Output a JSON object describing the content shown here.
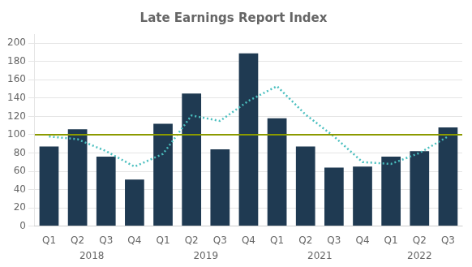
{
  "chart_data": {
    "type": "bar",
    "title": "Late Earnings Report Index",
    "categories": [
      "Q1",
      "Q2",
      "Q3",
      "Q4",
      "Q1",
      "Q2",
      "Q3",
      "Q4",
      "Q1",
      "Q2",
      "Q3",
      "Q4",
      "Q1",
      "Q2",
      "Q3"
    ],
    "groups": [
      {
        "label": "2018",
        "categories": [
          "Q1",
          "Q2",
          "Q3",
          "Q4"
        ]
      },
      {
        "label": "2019",
        "categories": [
          "Q1",
          "Q2",
          "Q3",
          "Q4"
        ]
      },
      {
        "label": "2021",
        "categories": [
          "Q1",
          "Q2",
          "Q3",
          "Q4"
        ]
      },
      {
        "label": "2022",
        "categories": [
          "Q1",
          "Q2",
          "Q3"
        ]
      }
    ],
    "series": [
      {
        "type": "bar",
        "color": "#1f3a52",
        "values": [
          87,
          106,
          76,
          51,
          112,
          145,
          84,
          189,
          118,
          87,
          64,
          65,
          76,
          82,
          108
        ]
      },
      {
        "type": "line",
        "color": "#4abfbf",
        "line_style": "dotted",
        "values": [
          98,
          95,
          82,
          65,
          79,
          121,
          115,
          137,
          153,
          122,
          98,
          70,
          68,
          80,
          98
        ]
      }
    ],
    "hline": {
      "value": 100,
      "color": "#8b9a00"
    },
    "ylim": [
      0,
      210
    ],
    "yticks": [
      0,
      20,
      40,
      60,
      80,
      100,
      120,
      140,
      160,
      180,
      200
    ],
    "grid": true
  }
}
